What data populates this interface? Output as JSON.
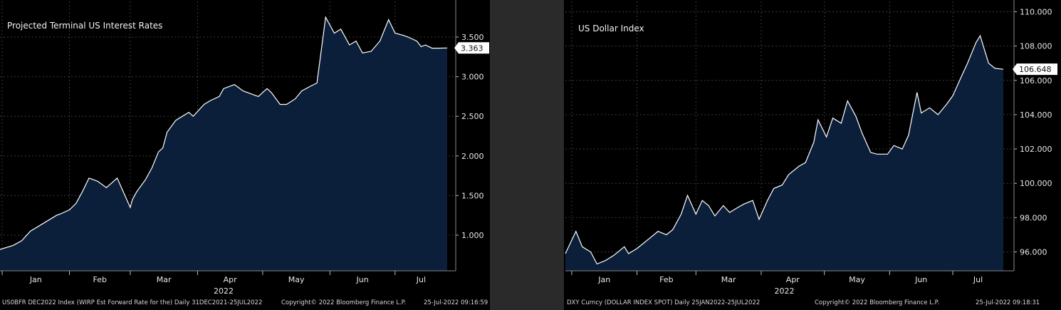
{
  "colors": {
    "background": "#000000",
    "area_fill": "#0b1f3a",
    "line": "#ffffff",
    "grid": "#3a3a3a",
    "last_value_box": "#ffffff"
  },
  "chart_data": [
    {
      "type": "area",
      "title": "Projected Terminal US Interest Rates",
      "year_label": "2022",
      "months": [
        "Jan",
        "Feb",
        "Mar",
        "Apr",
        "May",
        "Jun",
        "Jul"
      ],
      "y_ticks": [
        "1.000",
        "1.500",
        "2.000",
        "2.500",
        "3.000",
        "3.500"
      ],
      "ylim": [
        0.55,
        3.95
      ],
      "x_domain": [
        "2021-12-31",
        "2022-07-25"
      ],
      "last_value_label": "3.363",
      "footer": {
        "source": "US0BFR DEC2022 Index (WIRP Est Forward Rate for the)  Daily 31DEC2021-25JUL2022",
        "copyright": "Copyright© 2022 Bloomberg Finance L.P.",
        "timestamp": "25-Jul-2022 09:16:59"
      },
      "grid": true,
      "axis_side": "right",
      "x": [
        "2021-12-31",
        "2022-01-06",
        "2022-01-10",
        "2022-01-14",
        "2022-01-20",
        "2022-01-26",
        "2022-01-28",
        "2022-02-01",
        "2022-02-04",
        "2022-02-07",
        "2022-02-10",
        "2022-02-14",
        "2022-02-18",
        "2022-02-23",
        "2022-03-01",
        "2022-03-02",
        "2022-03-04",
        "2022-03-08",
        "2022-03-11",
        "2022-03-14",
        "2022-03-16",
        "2022-03-18",
        "2022-03-22",
        "2022-03-25",
        "2022-03-28",
        "2022-03-30",
        "2022-04-04",
        "2022-04-07",
        "2022-04-11",
        "2022-04-13",
        "2022-04-18",
        "2022-04-22",
        "2022-04-26",
        "2022-04-29",
        "2022-05-03",
        "2022-05-05",
        "2022-05-09",
        "2022-05-12",
        "2022-05-16",
        "2022-05-19",
        "2022-05-23",
        "2022-05-26",
        "2022-05-30",
        "2022-06-01",
        "2022-06-03",
        "2022-06-06",
        "2022-06-08",
        "2022-06-10",
        "2022-06-13",
        "2022-06-14",
        "2022-06-16",
        "2022-06-20",
        "2022-06-24",
        "2022-06-28",
        "2022-07-01",
        "2022-07-05",
        "2022-07-07",
        "2022-07-11",
        "2022-07-13",
        "2022-07-15",
        "2022-07-18",
        "2022-07-21",
        "2022-07-25"
      ],
      "values": [
        0.82,
        0.87,
        0.93,
        1.05,
        1.15,
        1.25,
        1.27,
        1.32,
        1.4,
        1.55,
        1.72,
        1.68,
        1.6,
        1.72,
        1.35,
        1.45,
        1.55,
        1.7,
        1.85,
        2.05,
        2.1,
        2.3,
        2.45,
        2.5,
        2.55,
        2.5,
        2.65,
        2.7,
        2.75,
        2.85,
        2.9,
        2.82,
        2.78,
        2.75,
        2.85,
        2.8,
        2.65,
        2.65,
        2.72,
        2.82,
        2.88,
        2.92,
        3.75,
        3.65,
        3.55,
        3.6,
        3.5,
        3.4,
        3.45,
        3.4,
        3.3,
        3.32,
        3.45,
        3.72,
        3.55,
        3.52,
        3.5,
        3.45,
        3.38,
        3.4,
        3.36,
        3.36,
        3.363
      ]
    },
    {
      "type": "area",
      "title": "US Dollar Index",
      "year_label": "2022",
      "months": [
        "Jan",
        "Feb",
        "Mar",
        "Apr",
        "May",
        "Jun",
        "Jul"
      ],
      "y_ticks": [
        "96.000",
        "98.000",
        "100.000",
        "102.000",
        "104.000",
        "106.000",
        "108.000",
        "110.000"
      ],
      "ylim": [
        94.9,
        110.6
      ],
      "x_domain": [
        "2021-12-29",
        "2022-07-25"
      ],
      "last_value_label": "106.648",
      "footer": {
        "source": "DXY Curncy (DOLLAR INDEX SPOT)  Daily 25JAN2022-25JUL2022",
        "copyright": "Copyright© 2022 Bloomberg Finance L.P.",
        "timestamp": "25-Jul-2022 09:18:31"
      },
      "grid": true,
      "axis_side": "right",
      "x": [
        "2021-12-29",
        "2022-01-03",
        "2022-01-06",
        "2022-01-10",
        "2022-01-13",
        "2022-01-17",
        "2022-01-21",
        "2022-01-26",
        "2022-01-28",
        "2022-02-01",
        "2022-02-04",
        "2022-02-07",
        "2022-02-11",
        "2022-02-15",
        "2022-02-18",
        "2022-02-22",
        "2022-02-25",
        "2022-03-01",
        "2022-03-04",
        "2022-03-07",
        "2022-03-10",
        "2022-03-14",
        "2022-03-17",
        "2022-03-21",
        "2022-03-24",
        "2022-03-28",
        "2022-03-31",
        "2022-04-04",
        "2022-04-07",
        "2022-04-11",
        "2022-04-14",
        "2022-04-19",
        "2022-04-22",
        "2022-04-26",
        "2022-04-28",
        "2022-05-02",
        "2022-05-05",
        "2022-05-09",
        "2022-05-12",
        "2022-05-16",
        "2022-05-19",
        "2022-05-23",
        "2022-05-26",
        "2022-05-31",
        "2022-06-03",
        "2022-06-07",
        "2022-06-10",
        "2022-06-14",
        "2022-06-16",
        "2022-06-20",
        "2022-06-24",
        "2022-06-28",
        "2022-07-01",
        "2022-07-05",
        "2022-07-08",
        "2022-07-12",
        "2022-07-14",
        "2022-07-18",
        "2022-07-21",
        "2022-07-25"
      ],
      "values": [
        95.9,
        97.2,
        96.3,
        96.0,
        95.3,
        95.5,
        95.8,
        96.3,
        95.9,
        96.2,
        96.5,
        96.8,
        97.2,
        97.0,
        97.3,
        98.2,
        99.3,
        98.2,
        99.0,
        98.7,
        98.1,
        98.7,
        98.3,
        98.6,
        98.8,
        99.0,
        97.9,
        99.0,
        99.7,
        99.9,
        100.5,
        101.0,
        101.2,
        102.4,
        103.7,
        102.7,
        103.8,
        103.5,
        104.8,
        103.9,
        102.9,
        101.8,
        101.7,
        101.7,
        102.2,
        102.0,
        102.8,
        105.3,
        104.1,
        104.4,
        104.0,
        104.6,
        105.1,
        106.2,
        107.0,
        108.2,
        108.6,
        107.0,
        106.7,
        106.648
      ]
    }
  ]
}
